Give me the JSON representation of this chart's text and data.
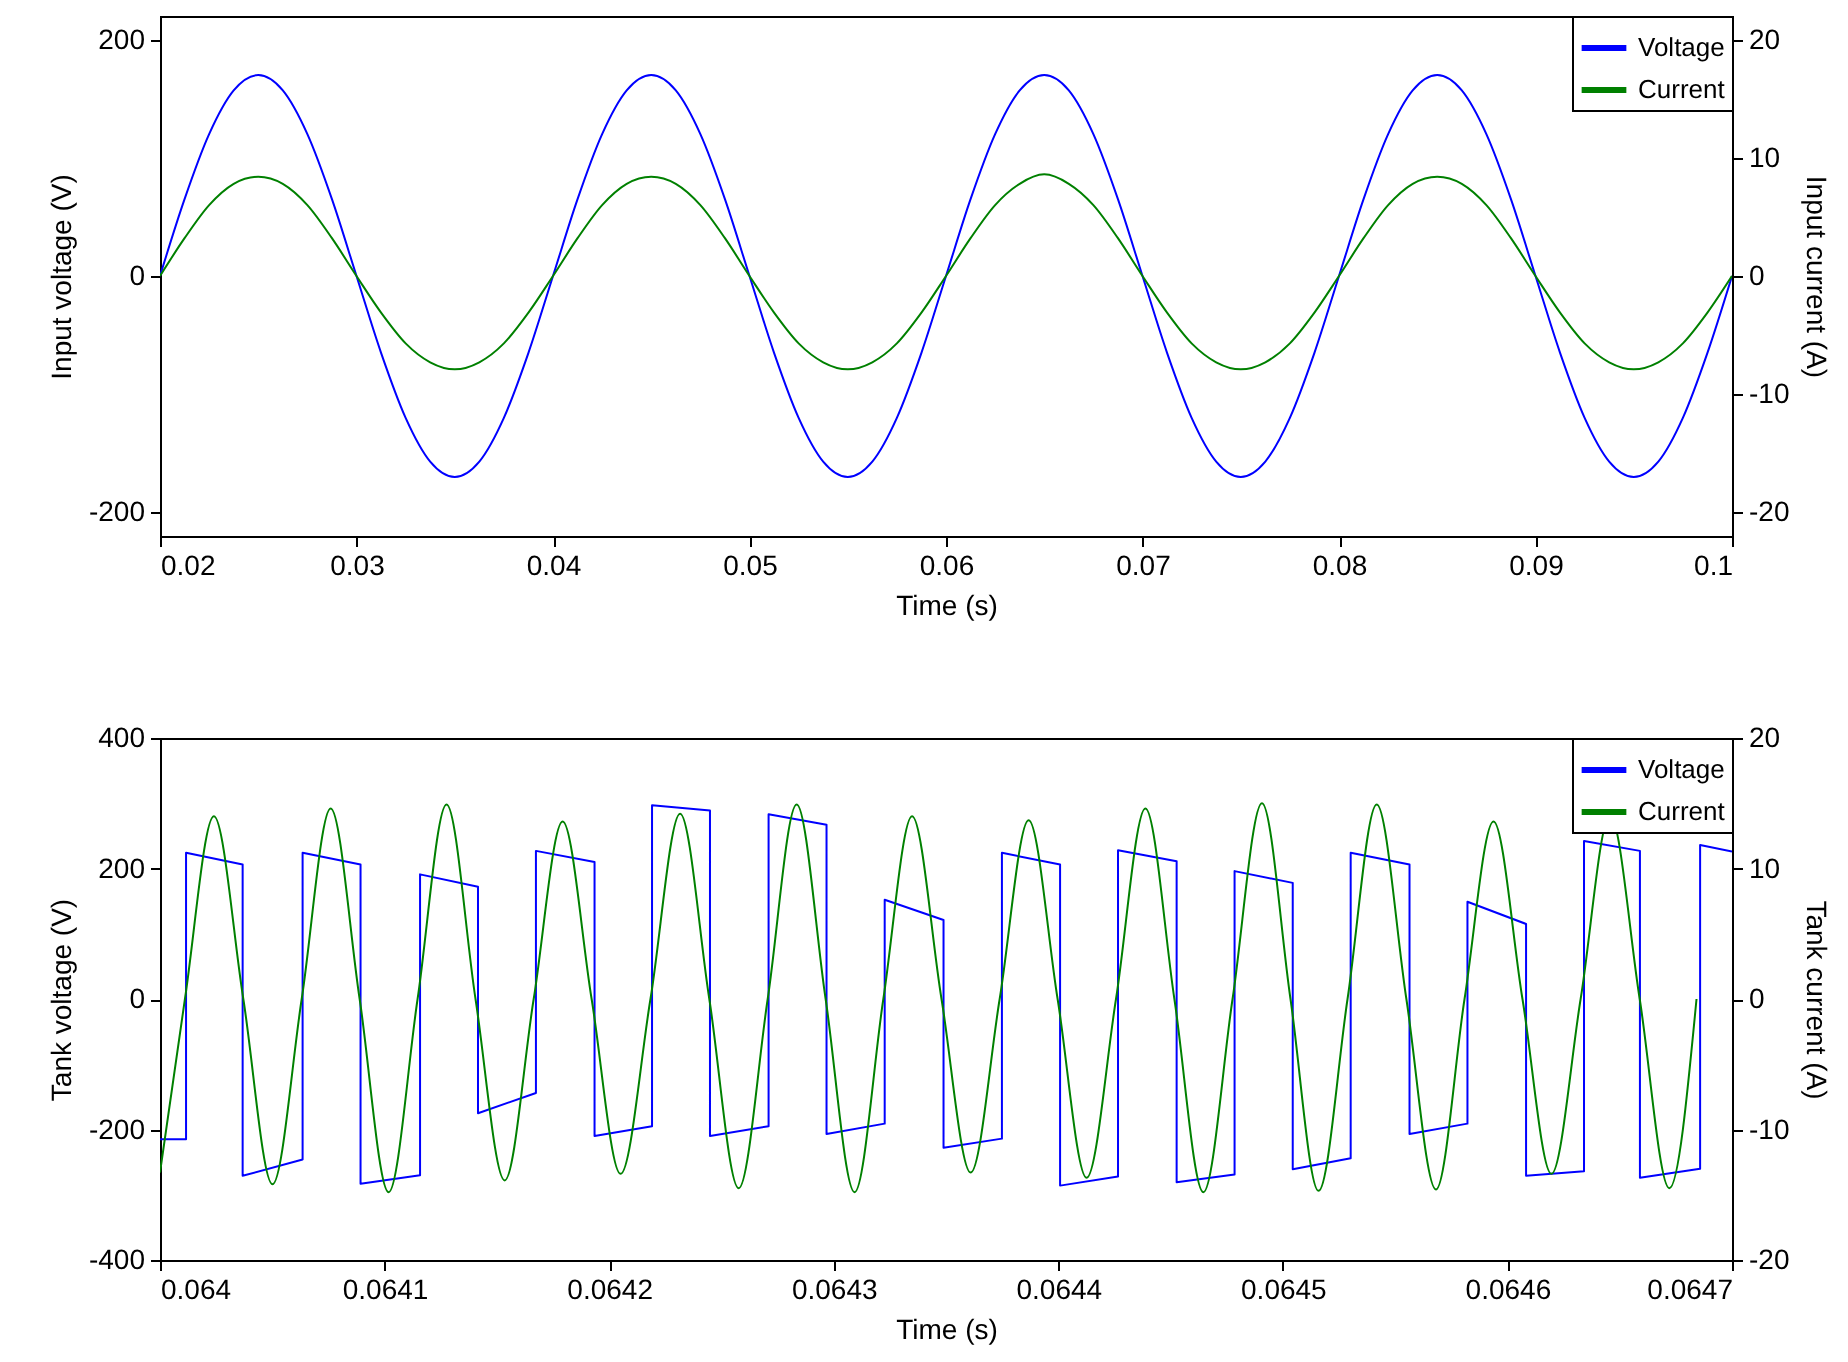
{
  "chart_data": [
    {
      "type": "line",
      "xlabel": "Time (s)",
      "ylabel": "Input voltage (V)",
      "y2label": "Input current (A)",
      "legend": "top right",
      "xlim": [
        0.02,
        0.1
      ],
      "xticks": [
        0.02,
        0.03,
        0.04,
        0.05,
        0.06,
        0.07,
        0.08,
        0.09,
        0.1
      ],
      "ylim": [
        -220,
        220
      ],
      "yticks": [
        -200,
        0,
        200
      ],
      "y2lim": [
        -22,
        22
      ],
      "y2ticks": [
        -20,
        -10,
        0,
        10,
        20
      ],
      "x": [
        0.02,
        0.02125,
        0.0225,
        0.02375,
        0.025,
        0.02625,
        0.0275,
        0.02875,
        0.03,
        0.03125,
        0.0325,
        0.03375,
        0.035,
        0.03625,
        0.0375,
        0.03875,
        0.04,
        0.04125,
        0.0425,
        0.04375,
        0.045,
        0.04625,
        0.0475,
        0.04875,
        0.05,
        0.05125,
        0.0525,
        0.05375,
        0.055,
        0.05625,
        0.0575,
        0.05875,
        0.06,
        0.06125,
        0.0625,
        0.06375,
        0.065,
        0.06625,
        0.0675,
        0.06875,
        0.07,
        0.07125,
        0.0725,
        0.07375,
        0.075,
        0.07625,
        0.0775,
        0.07875,
        0.08,
        0.08125,
        0.0825,
        0.08375,
        0.085,
        0.08625,
        0.0875,
        0.08875,
        0.09,
        0.09125,
        0.0925,
        0.09375,
        0.095,
        0.09625,
        0.0975,
        0.09875,
        0.1
      ],
      "series": [
        {
          "name": "Voltage",
          "color": "#0000ff",
          "values": [
            0,
            65,
            120,
            157,
            170,
            157,
            120,
            65,
            0,
            -65,
            -120,
            -157,
            -170,
            -157,
            -120,
            -65,
            0,
            65,
            120,
            157,
            170,
            157,
            120,
            65,
            0,
            -65,
            -120,
            -157,
            -170,
            -157,
            -120,
            -65,
            0,
            65,
            120,
            157,
            170,
            157,
            120,
            65,
            0,
            -65,
            -120,
            -157,
            -170,
            -157,
            -120,
            -65,
            0,
            65,
            120,
            157,
            170,
            157,
            120,
            65,
            0,
            -65,
            -120,
            -157,
            -170,
            -157,
            -120,
            -65,
            0
          ]
        },
        {
          "name": "Current",
          "color": "#008000",
          "axis": "y2",
          "values": [
            0,
            3.2,
            6,
            7.8,
            8.4,
            7.8,
            6,
            3.2,
            0,
            -3.1,
            -5.7,
            -7.3,
            -7.9,
            -7.3,
            -5.7,
            -3.1,
            0,
            3.2,
            6,
            7.8,
            8.4,
            7.8,
            6,
            3.2,
            0,
            -3.1,
            -5.7,
            -7.3,
            -7.9,
            -7.3,
            -5.7,
            -3.1,
            0,
            3.2,
            6,
            7.8,
            8.6,
            7.8,
            6,
            3.2,
            0,
            -3.1,
            -5.7,
            -7.3,
            -7.9,
            -7.3,
            -5.7,
            -3.1,
            0,
            3.2,
            6,
            7.8,
            8.4,
            7.8,
            6,
            3.2,
            0,
            -3.1,
            -5.7,
            -7.3,
            -7.9,
            -7.3,
            -5.7,
            -3.1,
            0
          ]
        }
      ]
    },
    {
      "type": "line",
      "xlabel": "Time (s)",
      "ylabel": "Tank voltage (V)",
      "y2label": "Tank current (A)",
      "legend": "top right",
      "xlim": [
        0.064,
        0.0647
      ],
      "xticks": [
        0.064,
        0.0641,
        0.0642,
        0.0643,
        0.0644,
        0.0645,
        0.0646,
        0.0647
      ],
      "ylim": [
        -400,
        400
      ],
      "yticks": [
        -400,
        -200,
        0,
        200,
        400
      ],
      "y2lim": [
        -20,
        20
      ],
      "y2ticks": [
        -20,
        -10,
        0,
        10,
        20
      ],
      "series": [
        {
          "name": "Voltage",
          "color": "#0000ff",
          "x": [
            0.064,
            0.0640116,
            0.0640116,
            0.0640368,
            0.0640368,
            0.0640635,
            0.0640635,
            0.0640893,
            0.0640893,
            0.0641158,
            0.0641158,
            0.0641416,
            0.0641416,
            0.0641674,
            0.0641674,
            0.0641935,
            0.0641935,
            0.0642191,
            0.0642191,
            0.0642449,
            0.0642449,
            0.064271,
            0.064271,
            0.0642968,
            0.0642968,
            0.0643227,
            0.0643227,
            0.0643489,
            0.0643489,
            0.0643749,
            0.0643749,
            0.0644008,
            0.0644008,
            0.0644266,
            0.0644266,
            0.0644527,
            0.0644527,
            0.0644785,
            0.0644785,
            0.0645044,
            0.0645044,
            0.0645302,
            0.0645302,
            0.0645564,
            0.0645564,
            0.0645822,
            0.0645822,
            0.0646083,
            0.0646083,
            0.0646341,
            0.0646341,
            0.064659,
            0.064659,
            0.0646858,
            0.0646858,
            0.0647
          ],
          "values": [
            -215,
            -215,
            224,
            206,
            -271,
            -246,
            224,
            206,
            -283,
            -270,
            191,
            172,
            -175,
            -144,
            227,
            210,
            -210,
            -195,
            297,
            289,
            -210,
            -195,
            283,
            267,
            -207,
            -191,
            152,
            121,
            -228,
            -214,
            224,
            206,
            -286,
            -272,
            228,
            211,
            -281,
            -269,
            196,
            178,
            -261,
            -244,
            224,
            206,
            -207,
            -191,
            149,
            115,
            -271,
            -264,
            242,
            227,
            -274,
            -260,
            236,
            226
          ]
        },
        {
          "name": "Current",
          "color": "#008000",
          "axis": "y2",
          "x": [
            0.064,
            0.0640111,
            0.064024,
            0.0640371,
            0.0640501,
            0.0640631,
            0.064076,
            0.0640889,
            0.0641018,
            0.0641147,
            0.0641276,
            0.0641405,
            0.0641535,
            0.0641664,
            0.0641793,
            0.0641922,
            0.0642051,
            0.0642184,
            0.0642316,
            0.0642446,
            0.0642577,
            0.0642706,
            0.0642835,
            0.0642964,
            0.0643093,
            0.0643221,
            0.0643349,
            0.064348,
            0.064361,
            0.0643739,
            0.0643868,
            0.0643997,
            0.0644126,
            0.0644257,
            0.0644388,
            0.0644517,
            0.0644646,
            0.0644776,
            0.0644907,
            0.0645034,
            0.0645159,
            0.0645288,
            0.0645418,
            0.064555,
            0.0645682,
            0.0645809,
            0.0645938,
            0.0646067,
            0.0646196,
            0.0646326,
            0.0646457,
            0.0646589,
            0.0646721,
            0.0646842
          ],
          "values": [
            -13.3,
            0,
            14.0,
            0,
            -14.2,
            0,
            14.6,
            0,
            -14.8,
            0,
            14.9,
            0,
            -13.9,
            0,
            13.6,
            0,
            -13.4,
            0,
            14.2,
            0,
            -14.5,
            0,
            14.9,
            0,
            -14.8,
            0,
            14.0,
            0,
            -13.3,
            0,
            13.7,
            0,
            -13.7,
            0,
            14.6,
            0,
            -14.8,
            0,
            15.0,
            0,
            -14.7,
            0,
            14.9,
            0,
            -14.6,
            0,
            13.6,
            0,
            -13.4,
            0,
            14.1,
            0,
            -14.5,
            0
          ]
        }
      ]
    }
  ]
}
